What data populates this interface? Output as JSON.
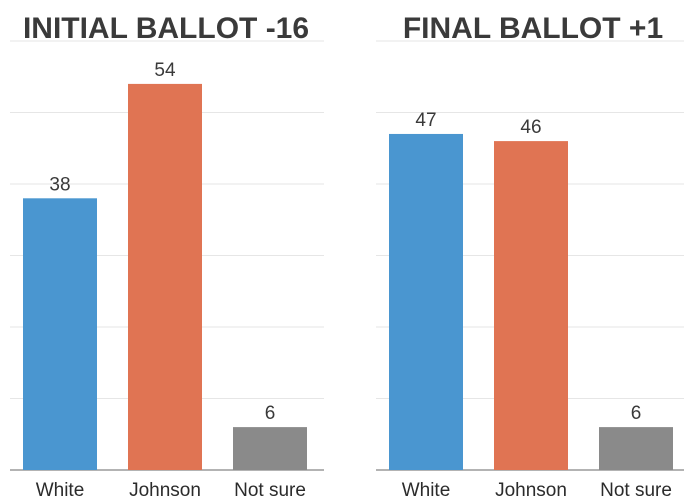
{
  "chart_data": [
    {
      "type": "bar",
      "title": "INITIAL BALLOT -16",
      "categories": [
        "White",
        "Johnson",
        "Not sure"
      ],
      "values": [
        38,
        54,
        6
      ],
      "value_labels": [
        "38",
        "54",
        "6"
      ],
      "colors": [
        "#4a96d0",
        "#e07453",
        "#8a8a8a"
      ],
      "ylim": [
        0,
        60
      ],
      "grid": true
    },
    {
      "type": "bar",
      "title": "FINAL BALLOT +1",
      "categories": [
        "White",
        "Johnson",
        "Not sure"
      ],
      "values": [
        47,
        46,
        6
      ],
      "value_labels": [
        "47",
        "46",
        "6"
      ],
      "colors": [
        "#4a96d0",
        "#e07453",
        "#8a8a8a"
      ],
      "ylim": [
        0,
        60
      ],
      "grid": true
    }
  ]
}
